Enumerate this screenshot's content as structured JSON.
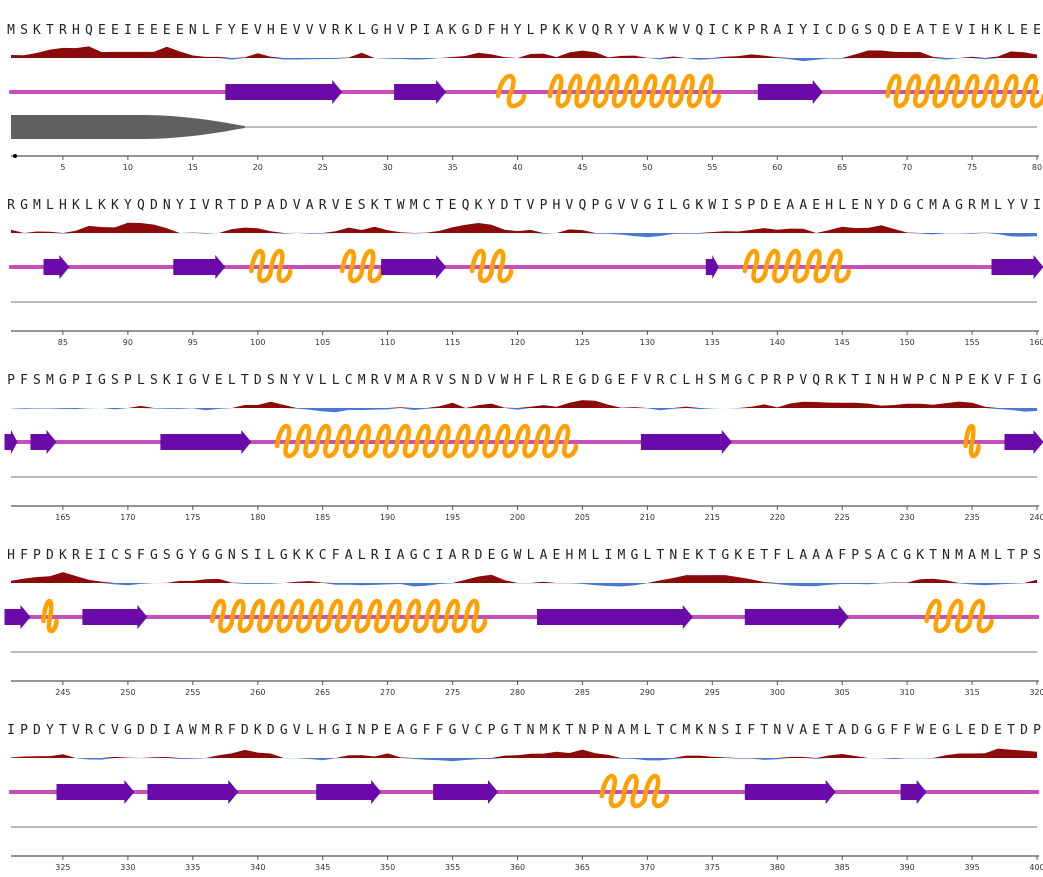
{
  "colors": {
    "hydrophobic": "#8b0a0a",
    "hydrophilic": "#4a78cf",
    "coil": "#c94fb8",
    "strand": "#6a0aa8",
    "helix": "#ff9f00",
    "disorder": "#606060",
    "axis": "#555555"
  },
  "rows": [
    {
      "sequence": "MSKTRHQEEIEEEENLFYEVHEVVVRKLGHVPIAKGDFHYLPKKVQRYVAKWVQICKPRAIYICDGSQDEATEVIHKLEE",
      "ticks": [
        "5",
        "10",
        "15",
        "20",
        "25",
        "30",
        "35",
        "40",
        "45",
        "50",
        "55",
        "60",
        "65",
        "70",
        "75",
        "80"
      ],
      "strands": [
        [
          18,
          26
        ],
        [
          31,
          34
        ],
        [
          59,
          63
        ]
      ],
      "helices": [
        [
          39,
          40
        ],
        [
          43,
          55
        ],
        [
          69,
          80
        ]
      ],
      "disorder": [
        1,
        17
      ]
    },
    {
      "sequence": "RGMLHKLKKYQDNYIVRTDPADVARVESKTWMCTEQKYDTVPHVQPGVVGILGKWISPDEAAEHLENYDGCMAGRMLYVI",
      "ticks": [
        "85",
        "90",
        "95",
        "100",
        "105",
        "110",
        "115",
        "120",
        "125",
        "130",
        "135",
        "140",
        "145",
        "150",
        "155",
        "160"
      ],
      "strands": [
        [
          84,
          85
        ],
        [
          94,
          97
        ],
        [
          110,
          114
        ],
        [
          135,
          135
        ],
        [
          157,
          160
        ]
      ],
      "helices": [
        [
          100,
          102
        ],
        [
          107,
          109
        ],
        [
          117,
          119
        ],
        [
          138,
          145
        ]
      ],
      "disorder": null
    },
    {
      "sequence": "PFSMGPIGSPLSKIGVELTDSNYVLLCMRVMARVSNDVWHFLREGDGEFVRCLHSMGCPRPVQRKTINHWPCNPEKVFIG",
      "ticks": [
        "165",
        "170",
        "175",
        "180",
        "185",
        "190",
        "195",
        "200",
        "205",
        "210",
        "215",
        "220",
        "225",
        "230",
        "235",
        "240"
      ],
      "strands": [
        [
          161,
          161
        ],
        [
          163,
          164
        ],
        [
          173,
          179
        ],
        [
          210,
          216
        ],
        [
          238,
          240
        ]
      ],
      "helices": [
        [
          182,
          204
        ],
        [
          235,
          235
        ]
      ],
      "disorder": null
    },
    {
      "sequence": "HFPDKREICSFGSGYGGNSILGKKCFALRIAGCIARDEGWLAEHMLIMGLTNEKTGKETFLAAAFPSACGKTNMAMLTPS",
      "ticks": [
        "245",
        "250",
        "255",
        "260",
        "265",
        "270",
        "275",
        "280",
        "285",
        "290",
        "295",
        "300",
        "305",
        "310",
        "315",
        "320"
      ],
      "strands": [
        [
          241,
          242
        ],
        [
          247,
          251
        ],
        [
          282,
          293
        ],
        [
          298,
          305
        ]
      ],
      "helices": [
        [
          244,
          244
        ],
        [
          257,
          277
        ],
        [
          312,
          316
        ]
      ],
      "disorder": null
    },
    {
      "sequence": "IPDYTVRCVGDDIAWMRFDKDGVLHGINPEAGFFGVCPGTNMKTNPNAMLTCMKNSIFTNVAETADGGFFWEGLEDETDP",
      "ticks": [
        "325",
        "330",
        "335",
        "340",
        "345",
        "350",
        "355",
        "360",
        "365",
        "370",
        "375",
        "380",
        "385",
        "390",
        "395",
        "400"
      ],
      "strands": [
        [
          325,
          330
        ],
        [
          332,
          338
        ],
        [
          345,
          349
        ],
        [
          354,
          358
        ],
        [
          378,
          384
        ],
        [
          390,
          391
        ]
      ],
      "helices": [
        [
          367,
          371
        ]
      ],
      "disorder": null
    }
  ]
}
